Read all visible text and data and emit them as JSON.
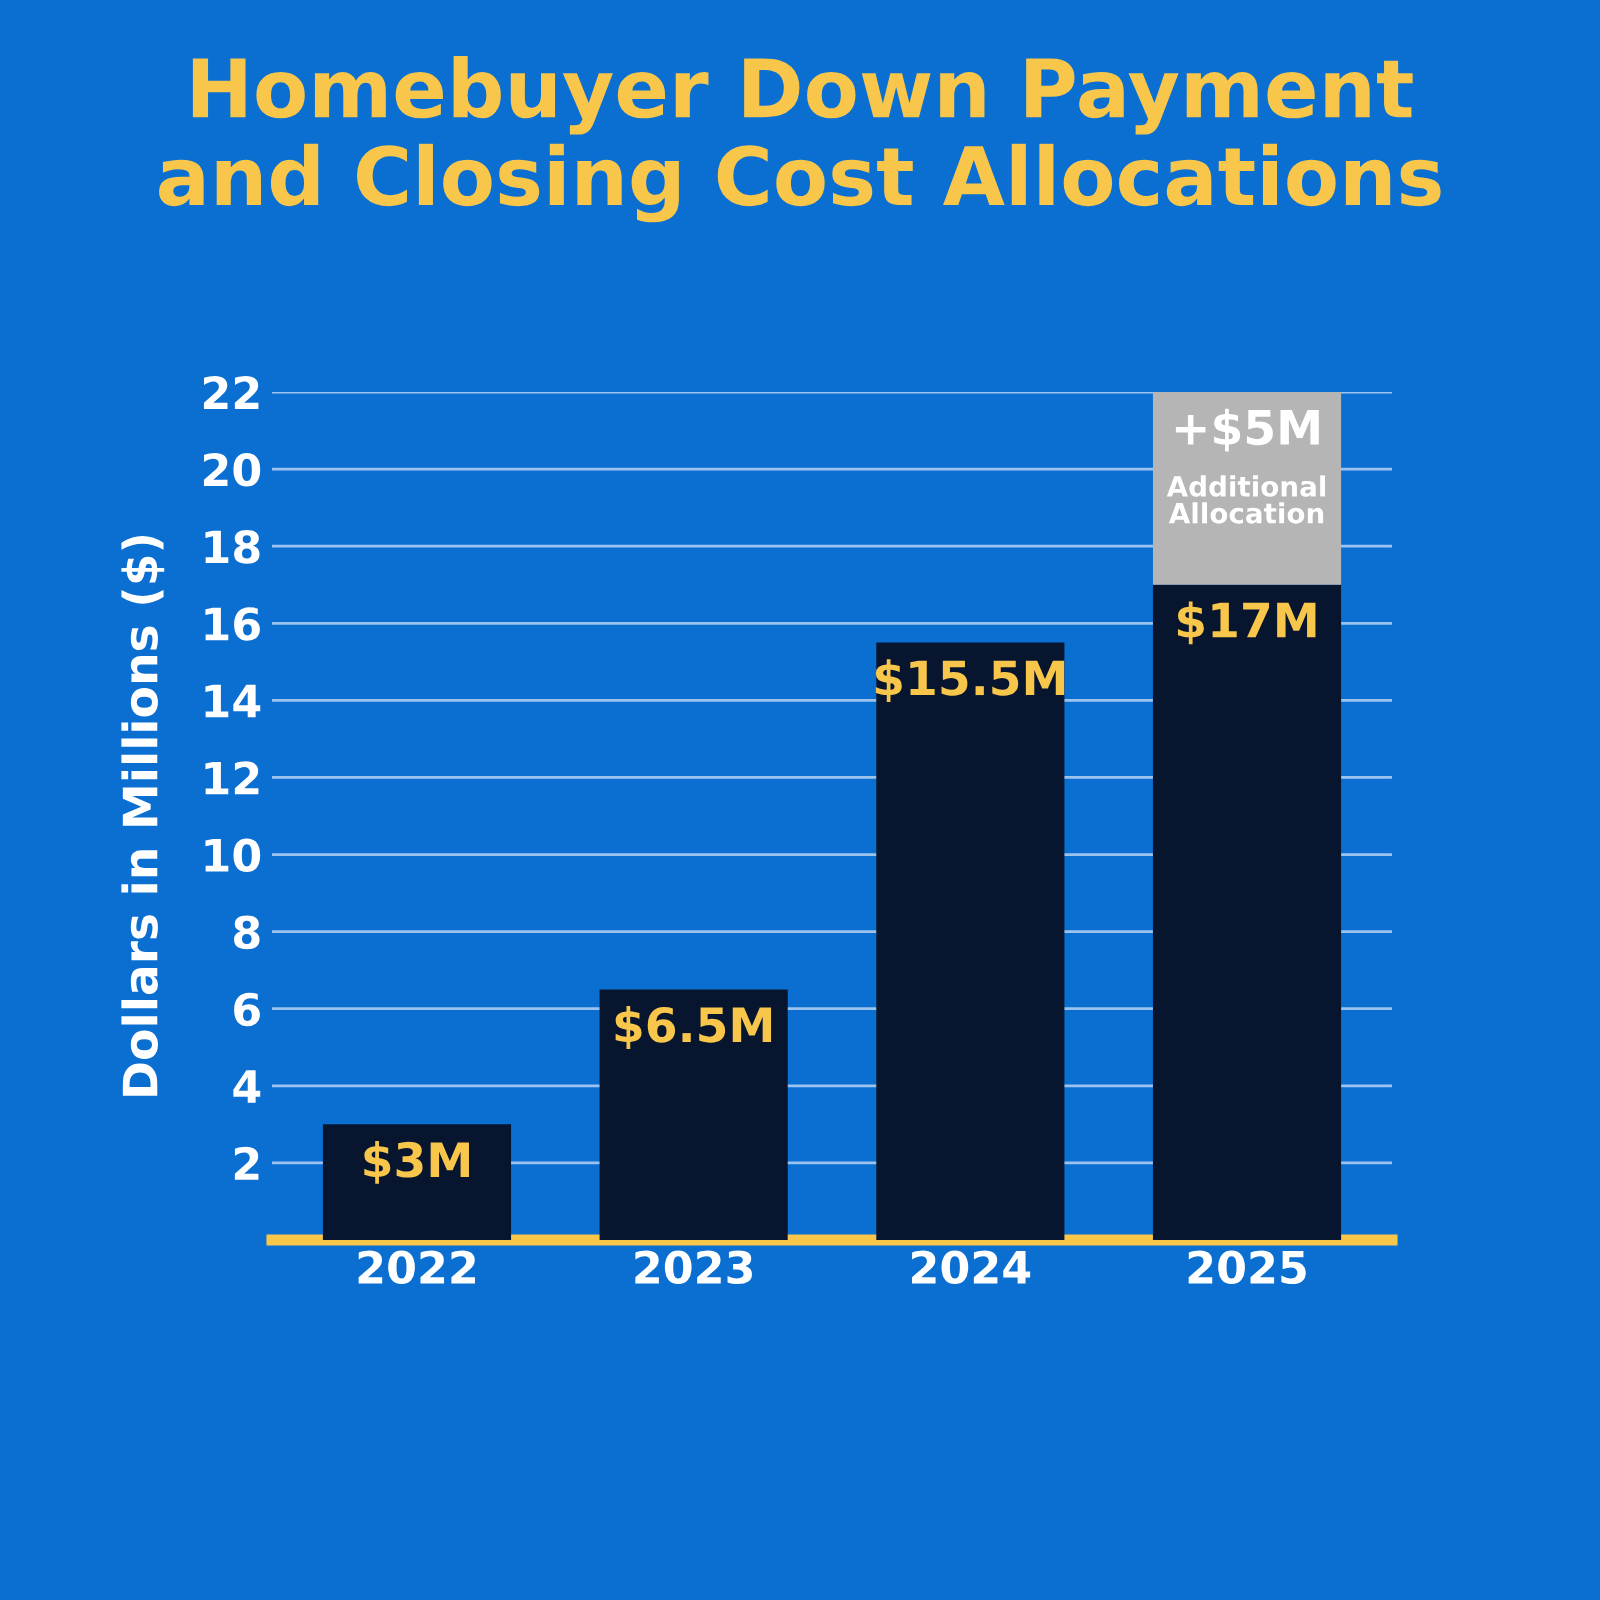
{
  "chart_data": {
    "type": "bar",
    "title": "Homebuyer Down Payment\nand Closing Cost Allocations",
    "ylabel": "Dollars in Millions ($)",
    "categories": [
      "2022",
      "2023",
      "2024",
      "2025"
    ],
    "stacked": true,
    "series": [
      {
        "color": "#07162e",
        "values": [
          3,
          6.5,
          15.5,
          17
        ],
        "value_labels": [
          "$3M",
          "$6.5M",
          "$15.5M",
          "$17M"
        ]
      },
      {
        "color": "#b5b5b5",
        "values": [
          0,
          0,
          0,
          5
        ],
        "value_labels": [
          null,
          null,
          null,
          "+$5M"
        ]
      }
    ],
    "annotations": [
      "Additional\nAllocation"
    ],
    "ylim": [
      0,
      22
    ],
    "yticks": [
      2,
      4,
      6,
      8,
      10,
      12,
      14,
      16,
      18,
      20,
      22
    ],
    "grid": "y",
    "legend": false
  }
}
